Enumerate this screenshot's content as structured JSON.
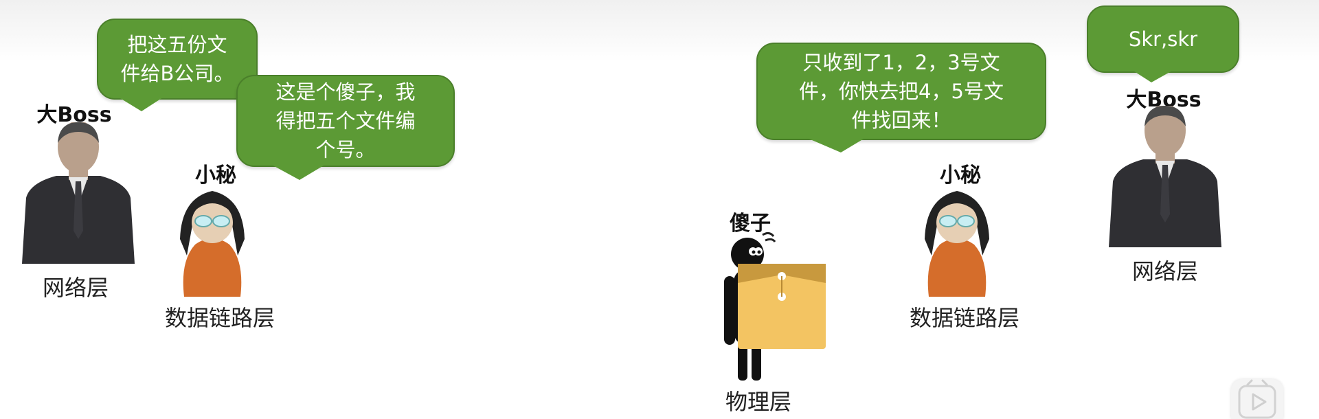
{
  "left_scene": {
    "boss": {
      "name": "大Boss",
      "layer": "网络层"
    },
    "secretary": {
      "name": "小秘",
      "layer": "数据链路层"
    },
    "boss_bubble": "把这五份文\n件给B公司。",
    "secretary_bubble": "这是个傻子，我\n得把五个文件编\n个号。"
  },
  "right_scene": {
    "fool": {
      "name": "傻子",
      "layer": "物理层"
    },
    "secretary": {
      "name": "小秘",
      "layer": "数据链路层"
    },
    "boss": {
      "name": "大Boss",
      "layer": "网络层"
    },
    "secretary_bubble": "只收到了1，2，3号文\n件，你快去把4，5号文\n件找回来！",
    "boss_bubble": "Skr,skr"
  },
  "icons": {
    "play_button": "play-icon"
  },
  "colors": {
    "bubble_fill": "#5c9a35",
    "bubble_border": "#4a7f2a",
    "suit": "#2f2f33",
    "skin": "#b9a08c",
    "secretary_body": "#d56d2b",
    "envelope": "#f3c462",
    "envelope_flap": "#c8993e"
  }
}
